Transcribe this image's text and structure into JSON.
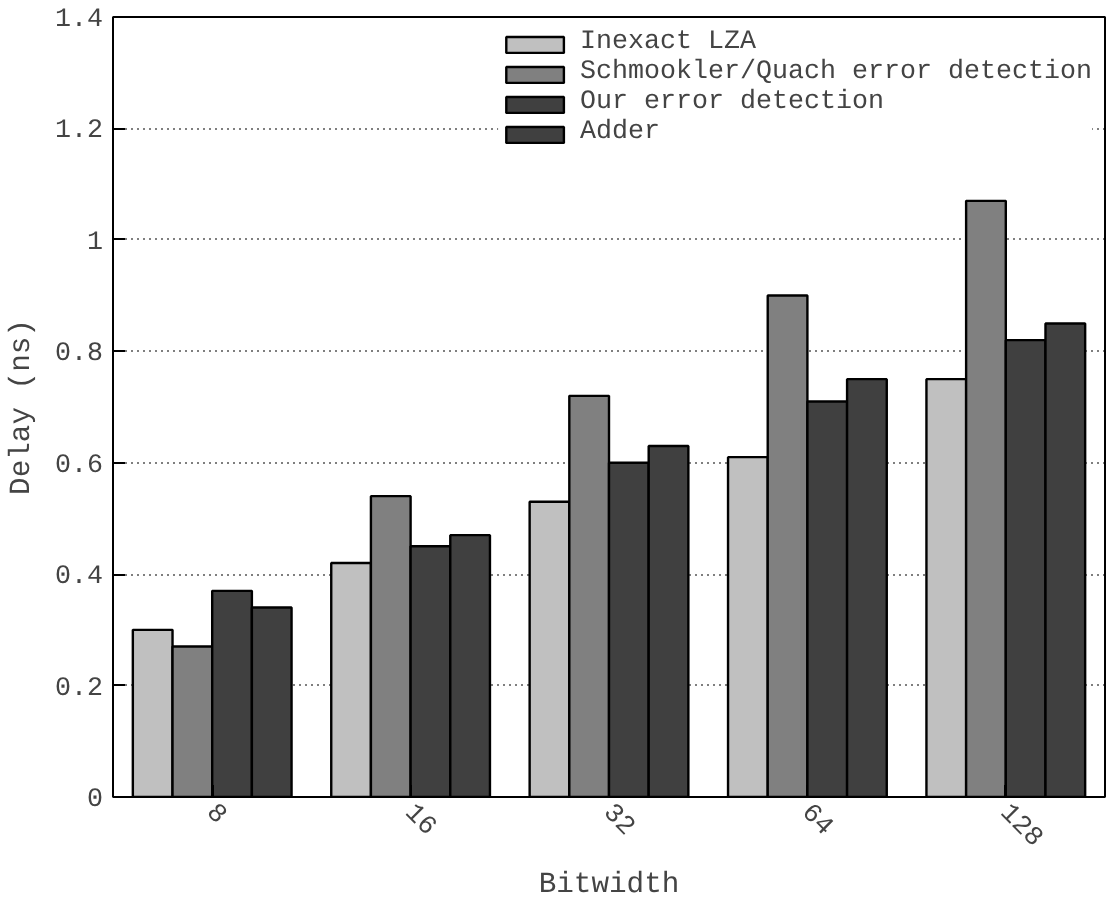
{
  "chart_data": {
    "type": "bar",
    "xlabel": "Bitwidth",
    "ylabel": "Delay (ns)",
    "categories": [
      "8",
      "16",
      "32",
      "64",
      "128"
    ],
    "series": [
      {
        "name": "Inexact LZA",
        "color": "#c0c0c0",
        "values": [
          0.3,
          0.42,
          0.53,
          0.61,
          0.75
        ]
      },
      {
        "name": "Schmookler/Quach error detection",
        "color": "#808080",
        "values": [
          0.27,
          0.54,
          0.72,
          0.9,
          1.07
        ]
      },
      {
        "name": "Our error detection",
        "color": "#404040",
        "values": [
          0.37,
          0.45,
          0.6,
          0.71,
          0.82
        ]
      },
      {
        "name": "Adder",
        "color": "#404040",
        "values": [
          0.34,
          0.47,
          0.63,
          0.75,
          0.85
        ]
      }
    ],
    "ylim": [
      0,
      1.4
    ],
    "yticks": [
      0,
      0.2,
      0.4,
      0.6,
      0.8,
      1,
      1.2,
      1.4
    ],
    "grid": "y",
    "legend": "top right"
  }
}
